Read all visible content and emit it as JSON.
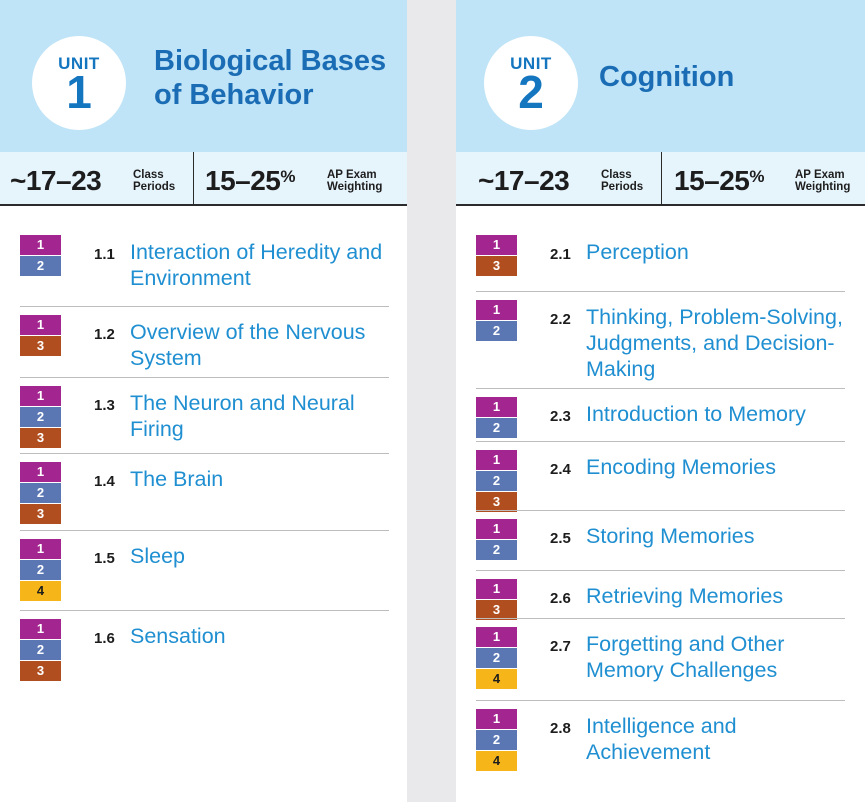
{
  "units": [
    {
      "unit_label": "UNIT",
      "unit_number": "1",
      "title": "Biological Bases of Behavior",
      "class_periods": "~17–23",
      "class_periods_label_1": "Class",
      "class_periods_label_2": "Periods",
      "weighting": "15–25",
      "weighting_pct": "%",
      "weighting_label_1": "AP Exam",
      "weighting_label_2": "Weighting",
      "topics": [
        {
          "number": "1.1",
          "title": "Interaction of Heredity and Environment",
          "badges": [
            "1",
            "2"
          ]
        },
        {
          "number": "1.2",
          "title": "Overview of the Nervous System",
          "badges": [
            "1",
            "3"
          ]
        },
        {
          "number": "1.3",
          "title": "The Neuron and Neural Firing",
          "badges": [
            "1",
            "2",
            "3"
          ]
        },
        {
          "number": "1.4",
          "title": "The Brain",
          "badges": [
            "1",
            "2",
            "3"
          ]
        },
        {
          "number": "1.5",
          "title": "Sleep",
          "badges": [
            "1",
            "2",
            "4"
          ]
        },
        {
          "number": "1.6",
          "title": "Sensation",
          "badges": [
            "1",
            "2",
            "3"
          ]
        }
      ]
    },
    {
      "unit_label": "UNIT",
      "unit_number": "2",
      "title": "Cognition",
      "class_periods": "~17–23",
      "class_periods_label_1": "Class",
      "class_periods_label_2": "Periods",
      "weighting": "15–25",
      "weighting_pct": "%",
      "weighting_label_1": "AP Exam",
      "weighting_label_2": "Weighting",
      "topics": [
        {
          "number": "2.1",
          "title": "Perception",
          "badges": [
            "1",
            "3"
          ]
        },
        {
          "number": "2.2",
          "title": "Thinking, Problem-Solving, Judgments, and Decision-Making",
          "badges": [
            "1",
            "2"
          ]
        },
        {
          "number": "2.3",
          "title": "Introduction to Memory",
          "badges": [
            "1",
            "2"
          ]
        },
        {
          "number": "2.4",
          "title": "Encoding Memories",
          "badges": [
            "1",
            "2",
            "3"
          ]
        },
        {
          "number": "2.5",
          "title": "Storing Memories",
          "badges": [
            "1",
            "2"
          ]
        },
        {
          "number": "2.6",
          "title": "Retrieving Memories",
          "badges": [
            "1",
            "3"
          ]
        },
        {
          "number": "2.7",
          "title": "Forgetting and Other Memory Challenges",
          "badges": [
            "1",
            "2",
            "4"
          ]
        },
        {
          "number": "2.8",
          "title": "Intelligence and Achievement",
          "badges": [
            "1",
            "2",
            "4"
          ]
        }
      ]
    }
  ],
  "colors": {
    "header_bg": "#bfe3f7",
    "title_blue": "#1a6db4",
    "topic_blue": "#1f8fd1",
    "badge_1": "#a3258f",
    "badge_2": "#5a77b4",
    "badge_3": "#b04e1f",
    "badge_4": "#f6b519"
  }
}
